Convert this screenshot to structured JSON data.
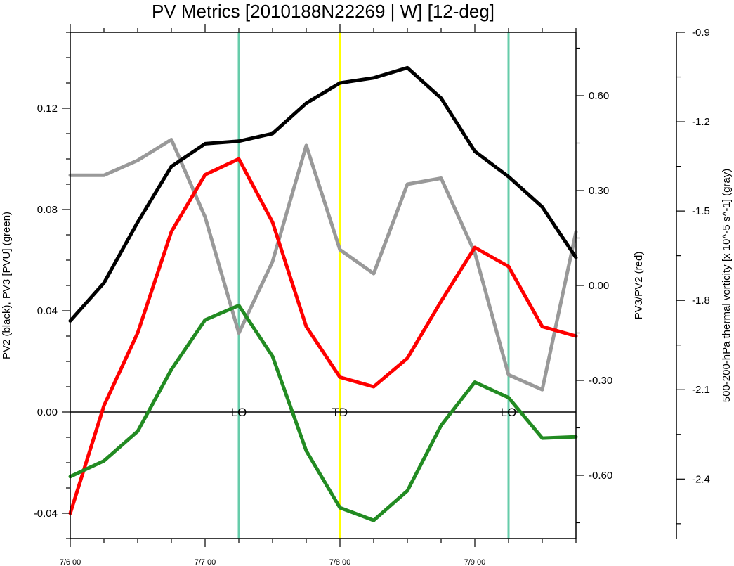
{
  "chart_data": {
    "type": "line",
    "title": "PV Metrics [2010188N22269 | W] [12-deg]",
    "x_ticks": [
      "7/6 00",
      "7/7 00",
      "7/8 00",
      "7/9 00"
    ],
    "x_step_hours": 6,
    "left_axis": {
      "label": "PV2 (black), PV3 [PVU] (green)",
      "range": [
        -0.05,
        0.15
      ],
      "ticks": [
        "-0.04",
        "0.00",
        "0.04",
        "0.08",
        "0.12"
      ],
      "tick_values": [
        -0.04,
        0.0,
        0.04,
        0.08,
        0.12
      ]
    },
    "mid_axis": {
      "label": "PV3/PV2 (red)",
      "range": [
        -0.8,
        0.8
      ],
      "ticks": [
        "-0.60",
        "-0.30",
        "0.00",
        "0.30",
        "0.60"
      ],
      "tick_values": [
        -0.6,
        -0.3,
        0.0,
        0.3,
        0.6
      ]
    },
    "right_axis": {
      "label": "500-200-hPa thermal vorticity [x 10^-5 s^-1] (gray)",
      "range": [
        -2.6,
        -0.9
      ],
      "ticks": [
        "-2.4",
        "-2.1",
        "-1.8",
        "-1.5",
        "-1.2",
        "-0.9"
      ],
      "tick_values": [
        -2.4,
        -2.1,
        -1.8,
        -1.5,
        -1.2,
        -0.9
      ]
    },
    "series": [
      {
        "name": "PV2",
        "axis": "left",
        "color": "#000000",
        "values": [
          0.036,
          0.051,
          0.075,
          0.097,
          0.106,
          0.107,
          0.11,
          0.122,
          0.13,
          0.132,
          0.136,
          0.124,
          0.103,
          0.093,
          0.081,
          0.061
        ]
      },
      {
        "name": "PV3",
        "axis": "left",
        "color": "#228B22",
        "values": [
          -0.0255,
          -0.0193,
          -0.0076,
          0.0168,
          0.0364,
          0.0421,
          0.022,
          -0.0153,
          -0.0378,
          -0.0428,
          -0.0311,
          -0.0053,
          0.0118,
          0.0057,
          -0.0103,
          -0.0098
        ]
      },
      {
        "name": "PV3/PV2",
        "axis": "mid",
        "color": "#ff0000",
        "values": [
          -0.72,
          -0.38,
          -0.15,
          0.17,
          0.35,
          0.4,
          0.2,
          -0.13,
          -0.29,
          -0.32,
          -0.23,
          -0.05,
          0.12,
          0.06,
          -0.13,
          -0.16
        ]
      },
      {
        "name": "Thermal vorticity",
        "axis": "right",
        "color": "#999999",
        "values": [
          -1.38,
          -1.38,
          -1.33,
          -1.26,
          -1.52,
          -1.91,
          -1.67,
          -1.28,
          -1.63,
          -1.71,
          -1.41,
          -1.39,
          -1.64,
          -2.05,
          -2.1,
          -1.57
        ]
      }
    ],
    "vertical_markers": [
      {
        "label": "LO",
        "position_hours": 30,
        "color": "#66ccaa"
      },
      {
        "label": "TD",
        "position_hours": 48,
        "color": "#ffff00"
      },
      {
        "label": "LO",
        "position_hours": 78,
        "color": "#66ccaa"
      }
    ],
    "zero_line_value": 0.0
  }
}
